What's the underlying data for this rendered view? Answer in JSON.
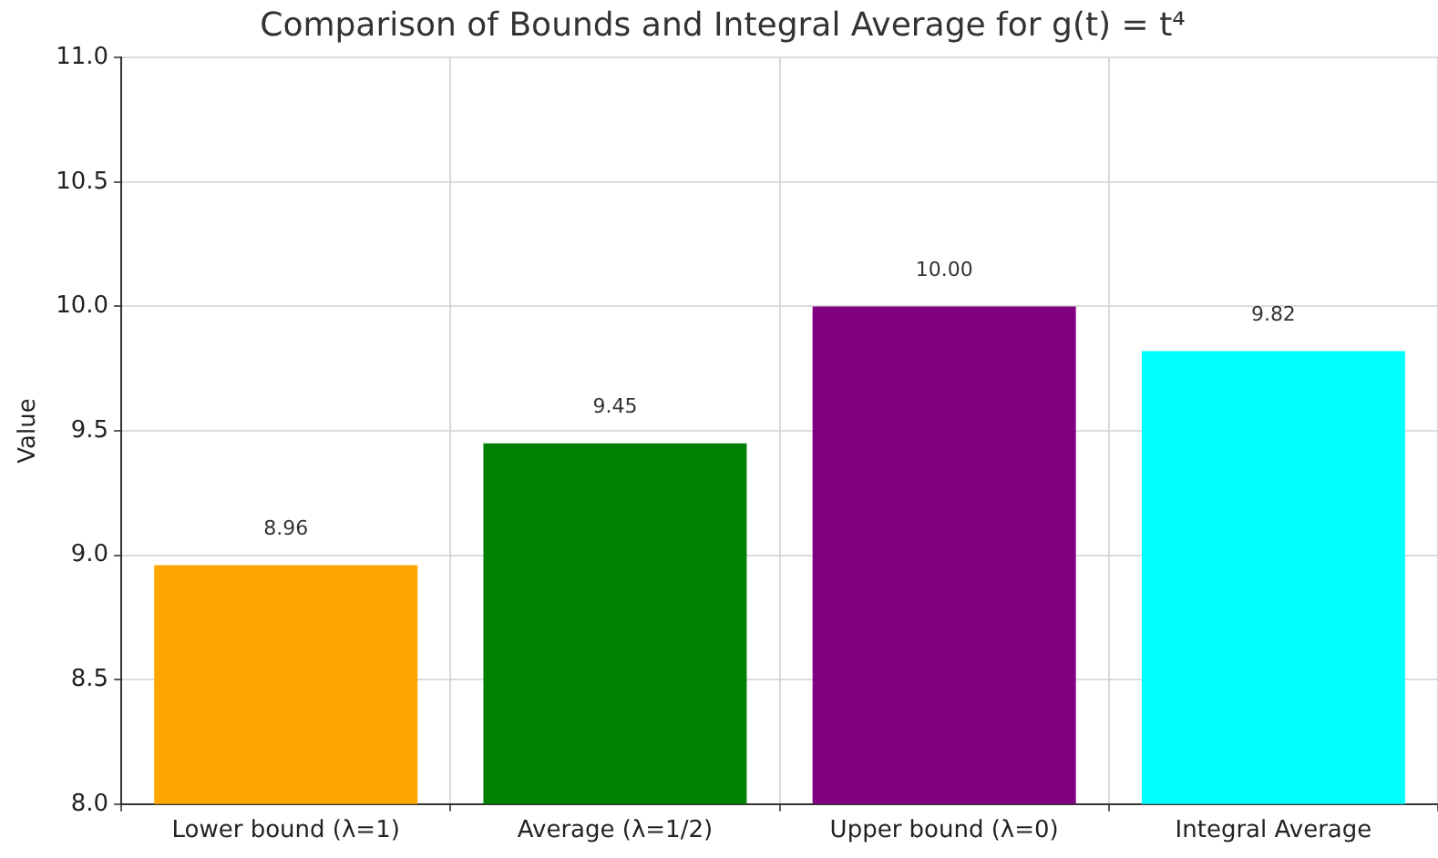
{
  "chart_data": {
    "type": "bar",
    "title": "Comparison of Bounds and Integral Average for g(t) = t⁴",
    "ylabel": "Value",
    "categories": [
      "Lower bound (λ=1)",
      "Average (λ=1/2)",
      "Upper bound (λ=0)",
      "Integral Average"
    ],
    "values": [
      8.96,
      9.45,
      10.0,
      9.82
    ],
    "colors": [
      "#ffa500",
      "#008000",
      "#800080",
      "#00ffff"
    ],
    "value_labels": [
      "8.96",
      "9.45",
      "10.00",
      "9.82"
    ],
    "ylim": [
      8.0,
      11.0
    ],
    "yticks": [
      {
        "value": 8.0,
        "label": "8.0"
      },
      {
        "value": 8.5,
        "label": "8.5"
      },
      {
        "value": 9.0,
        "label": "9.0"
      },
      {
        "value": 9.5,
        "label": "9.5"
      },
      {
        "value": 10.0,
        "label": "10.0"
      },
      {
        "value": 10.5,
        "label": "10.5"
      },
      {
        "value": 11.0,
        "label": "11.0"
      }
    ],
    "grid": true
  }
}
